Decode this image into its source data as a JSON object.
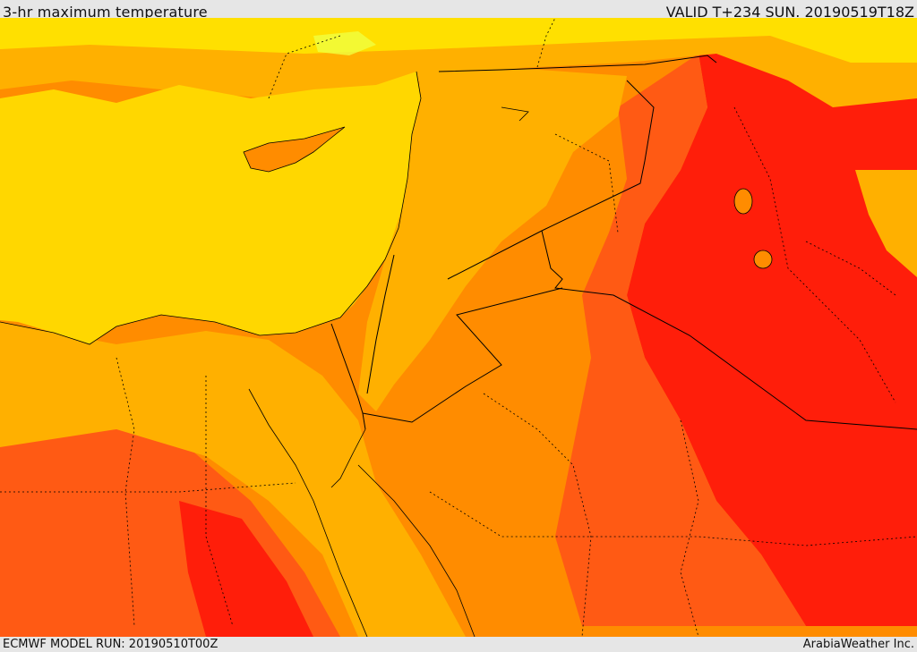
{
  "header": {
    "title": "3-hr maximum temperature",
    "valid_time": "VALID T+234 SUN. 20190519T18Z"
  },
  "footer": {
    "model_run": "ECMWF MODEL RUN: 20190510T00Z",
    "credit": "ArabiaWeather Inc."
  },
  "map": {
    "layer": "3-hr maximum temperature",
    "palette": {
      "sea": "#ffd700",
      "mild": "#ffe000",
      "warm": "#ffb000",
      "hot": "#ff8c00",
      "very_hot": "#ff5a14",
      "extreme": "#ff1e0a",
      "cool": "#f0ff40"
    }
  }
}
